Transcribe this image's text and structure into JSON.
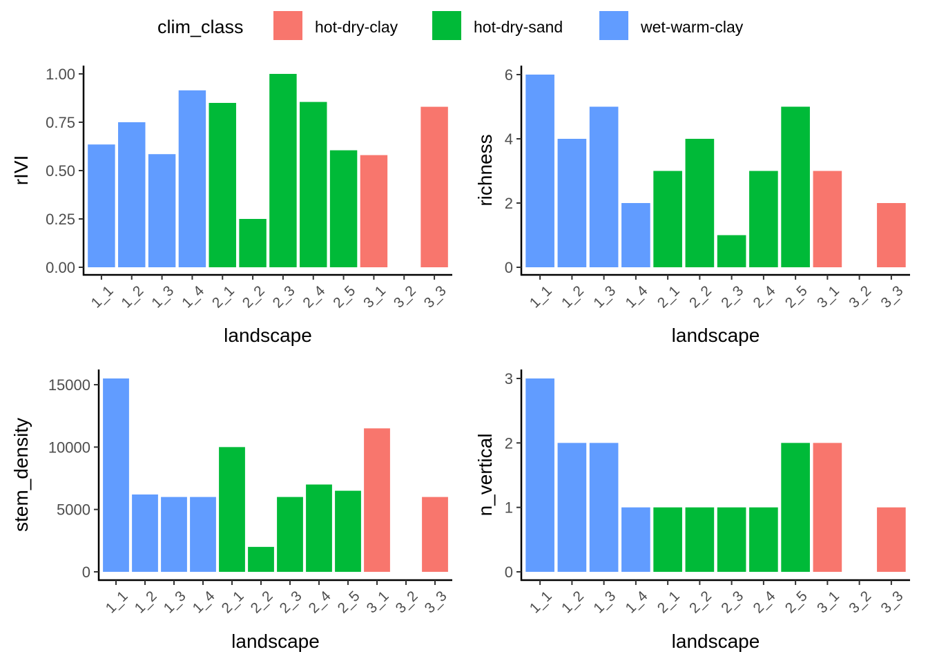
{
  "legend": {
    "title": "clim_class",
    "items": [
      {
        "label": "hot-dry-clay",
        "color": "#F8766D"
      },
      {
        "label": "hot-dry-sand",
        "color": "#00BA38"
      },
      {
        "label": "wet-warm-clay",
        "color": "#619CFF"
      }
    ]
  },
  "chart_data": [
    {
      "type": "bar",
      "xlabel": "landscape",
      "ylabel": "rIVI",
      "categories": [
        "1_1",
        "1_2",
        "1_3",
        "1_4",
        "2_1",
        "2_2",
        "2_3",
        "2_4",
        "2_5",
        "3_1",
        "3_2",
        "3_3"
      ],
      "values": [
        0.635,
        0.75,
        0.585,
        0.915,
        0.85,
        0.25,
        1.0,
        0.855,
        0.605,
        0.58,
        0,
        0.83
      ],
      "classes": [
        "wet-warm-clay",
        "wet-warm-clay",
        "wet-warm-clay",
        "wet-warm-clay",
        "hot-dry-sand",
        "hot-dry-sand",
        "hot-dry-sand",
        "hot-dry-sand",
        "hot-dry-sand",
        "hot-dry-clay",
        "hot-dry-clay",
        "hot-dry-clay"
      ],
      "yticks": [
        0,
        0.25,
        0.5,
        0.75,
        1.0
      ],
      "ytick_labels": [
        "0.00",
        "0.25",
        "0.50",
        "0.75",
        "1.00"
      ],
      "ylim": [
        0,
        1.0
      ]
    },
    {
      "type": "bar",
      "xlabel": "landscape",
      "ylabel": "richness",
      "categories": [
        "1_1",
        "1_2",
        "1_3",
        "1_4",
        "2_1",
        "2_2",
        "2_3",
        "2_4",
        "2_5",
        "3_1",
        "3_2",
        "3_3"
      ],
      "values": [
        6,
        4,
        5,
        2,
        3,
        4,
        1,
        3,
        5,
        3,
        0,
        2
      ],
      "classes": [
        "wet-warm-clay",
        "wet-warm-clay",
        "wet-warm-clay",
        "wet-warm-clay",
        "hot-dry-sand",
        "hot-dry-sand",
        "hot-dry-sand",
        "hot-dry-sand",
        "hot-dry-sand",
        "hot-dry-clay",
        "hot-dry-clay",
        "hot-dry-clay"
      ],
      "yticks": [
        0,
        2,
        4,
        6
      ],
      "ytick_labels": [
        "0",
        "2",
        "4",
        "6"
      ],
      "ylim": [
        0,
        6
      ]
    },
    {
      "type": "bar",
      "xlabel": "landscape",
      "ylabel": "stem_density",
      "categories": [
        "1_1",
        "1_2",
        "1_3",
        "1_4",
        "2_1",
        "2_2",
        "2_3",
        "2_4",
        "2_5",
        "3_1",
        "3_2",
        "3_3"
      ],
      "values": [
        15500,
        6200,
        6000,
        6000,
        10000,
        2000,
        6000,
        7000,
        6500,
        11500,
        0,
        6000
      ],
      "classes": [
        "wet-warm-clay",
        "wet-warm-clay",
        "wet-warm-clay",
        "wet-warm-clay",
        "hot-dry-sand",
        "hot-dry-sand",
        "hot-dry-sand",
        "hot-dry-sand",
        "hot-dry-sand",
        "hot-dry-clay",
        "hot-dry-clay",
        "hot-dry-clay"
      ],
      "yticks": [
        0,
        5000,
        10000,
        15000
      ],
      "ytick_labels": [
        "0",
        "5000",
        "10000",
        "15000"
      ],
      "ylim": [
        0,
        15500
      ]
    },
    {
      "type": "bar",
      "xlabel": "landscape",
      "ylabel": "n_vertical",
      "categories": [
        "1_1",
        "1_2",
        "1_3",
        "1_4",
        "2_1",
        "2_2",
        "2_3",
        "2_4",
        "2_5",
        "3_1",
        "3_2",
        "3_3"
      ],
      "values": [
        3,
        2,
        2,
        1,
        1,
        1,
        1,
        1,
        2,
        2,
        0,
        1
      ],
      "classes": [
        "wet-warm-clay",
        "wet-warm-clay",
        "wet-warm-clay",
        "wet-warm-clay",
        "hot-dry-sand",
        "hot-dry-sand",
        "hot-dry-sand",
        "hot-dry-sand",
        "hot-dry-sand",
        "hot-dry-clay",
        "hot-dry-clay",
        "hot-dry-clay"
      ],
      "yticks": [
        0,
        1,
        2,
        3
      ],
      "ytick_labels": [
        "0",
        "1",
        "2",
        "3"
      ],
      "ylim": [
        0,
        3
      ]
    }
  ]
}
